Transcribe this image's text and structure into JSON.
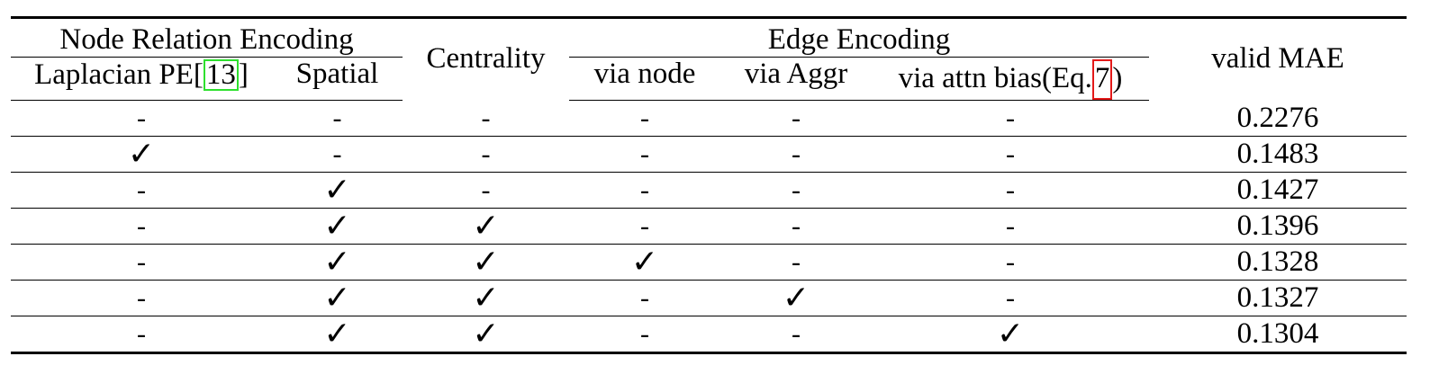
{
  "table": {
    "header_groups": {
      "node_relation": "Node Relation Encoding",
      "centrality": "Centrality",
      "edge_encoding": "Edge Encoding",
      "valid_mae": "valid MAE"
    },
    "subheaders": {
      "laplacian_prefix": "Laplacian PE",
      "laplacian_cite_open": "[",
      "laplacian_cite": "13",
      "laplacian_cite_close": "]",
      "spatial": "Spatial",
      "via_node": "via node",
      "via_aggr": "via Aggr",
      "via_attn_prefix": "via attn bias(Eq.",
      "via_attn_ref": "7",
      "via_attn_suffix": ")"
    },
    "rows": [
      [
        "-",
        "-",
        "-",
        "-",
        "-",
        "-",
        "0.2276"
      ],
      [
        "✓",
        "-",
        "-",
        "-",
        "-",
        "-",
        "0.1483"
      ],
      [
        "-",
        "✓",
        "-",
        "-",
        "-",
        "-",
        "0.1427"
      ],
      [
        "-",
        "✓",
        "✓",
        "-",
        "-",
        "-",
        "0.1396"
      ],
      [
        "-",
        "✓",
        "✓",
        "✓",
        "-",
        "-",
        "0.1328"
      ],
      [
        "-",
        "✓",
        "✓",
        "-",
        "✓",
        "-",
        "0.1327"
      ],
      [
        "-",
        "✓",
        "✓",
        "-",
        "-",
        "✓",
        "0.1304"
      ]
    ]
  }
}
